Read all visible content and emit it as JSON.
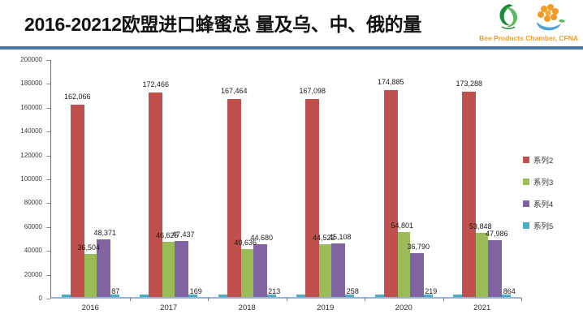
{
  "header": {
    "title": "2016-20212欧盟进口蜂蜜总 量及乌、中、俄的量",
    "logo_caption": "Bee Products Chamber, CFNA",
    "logo_caption_color": "#F59B22",
    "divider_color": "#4A77A8"
  },
  "chart_data": {
    "type": "bar",
    "title": "2016-20212欧盟进口蜂蜜总 量及乌、中、俄的量",
    "categories": [
      "2016",
      "2017",
      "2018",
      "2019",
      "2020",
      "2021"
    ],
    "series": [
      {
        "name": "系列2",
        "color": "#C0504D",
        "values": [
          162066,
          172466,
          167464,
          167098,
          174885,
          173288
        ],
        "labels": [
          "162,066",
          "172,466",
          "167,464",
          "167,098",
          "174,885",
          "173,288"
        ]
      },
      {
        "name": "系列3",
        "color": "#9BBB59",
        "values": [
          36504,
          46625,
          40636,
          44522,
          54801,
          53848
        ],
        "labels": [
          "36,504",
          "46,625",
          "40,636",
          "44,522",
          "54,801",
          "53,848"
        ]
      },
      {
        "name": "系列4",
        "color": "#8064A2",
        "values": [
          48371,
          47437,
          44680,
          45108,
          36790,
          47986
        ],
        "labels": [
          "48,371",
          "47,437",
          "44,680",
          "45,108",
          "36,790",
          "47,986"
        ]
      },
      {
        "name": "系列5",
        "color": "#4BACC6",
        "values": [
          87,
          169,
          213,
          258,
          219,
          864
        ],
        "labels": [
          "87",
          "169",
          "213",
          "258",
          "219",
          "864"
        ]
      }
    ],
    "xlabel": "",
    "ylabel": "",
    "ylim": [
      0,
      200000
    ],
    "yticks": [
      0,
      20000,
      40000,
      60000,
      80000,
      100000,
      120000,
      140000,
      160000,
      180000,
      200000
    ],
    "grid": false,
    "legend_position": "right",
    "data_labels": true
  }
}
